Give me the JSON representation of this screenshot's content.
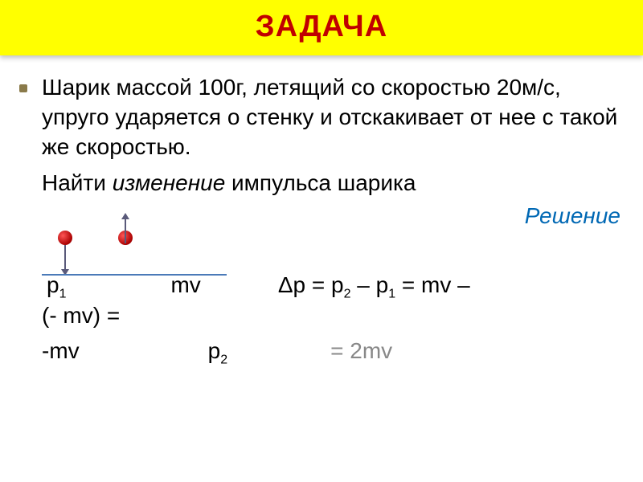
{
  "slide": {
    "title": "ЗАДАЧА",
    "title_color": "#c00000",
    "title_bg": "#ffff00",
    "problem_text": "Шарик массой 100г, летящий со скоростью 20м/с, упруго ударяется о стенку и отскакивает от нее с такой же скоростью.",
    "find_prefix": "Найти ",
    "find_word": "изменение",
    "find_suffix": " импульса шарика",
    "solution_label": "Решение",
    "solution_color": "#0068b4",
    "diagram": {
      "ball_color": "#aa0000",
      "wall_color": "#4a7ab8",
      "arrow_color": "#5a5a7a"
    },
    "formulas": {
      "p1": "p",
      "p1_sub": "1",
      "mv": "mv",
      "delta_line": "Δp = p",
      "delta_sub2": "2",
      "delta_mid": " – p",
      "delta_sub1": "1",
      "delta_end": " = mv –",
      "paren_mv": "(- mv) =",
      "neg_mv": "-mv",
      "p2": "p",
      "p2_sub": "2",
      "eq_2mv": "= 2mv"
    },
    "fonts": {
      "title_size": 38,
      "body_size": 28
    },
    "background": "#ffffff"
  }
}
